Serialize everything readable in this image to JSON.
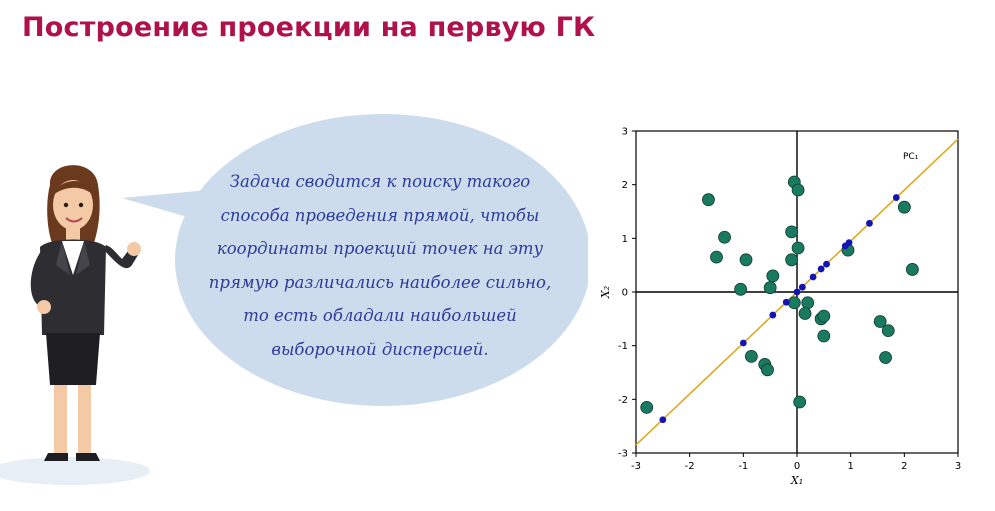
{
  "slide": {
    "title": "Построение проекции на первую ГК",
    "bubble_text": "Задача сводится к поиску такого способа проведения прямой, чтобы координаты проекций точек на эту прямую различались наиболее сильно, то есть обладали наибольшей выборочной дисперсией."
  },
  "colors": {
    "title": "#b0114b",
    "bubble_fill": "#cddcec",
    "bubble_text": "#2c3a9a",
    "scatter_points": "#1a7a60",
    "projection_points": "#1414b4",
    "pc_line": "#e0a81c"
  },
  "illustration": {
    "icon": "businesswoman-presenting"
  },
  "chart_data": {
    "type": "scatter",
    "xlabel": "X₁",
    "ylabel": "X₂",
    "xlim": [
      -3,
      3
    ],
    "ylim": [
      -3,
      3
    ],
    "xticks": [
      "-3",
      "-2",
      "-1",
      "0",
      "1",
      "2",
      "3"
    ],
    "yticks": [
      "3",
      "2",
      "1",
      "0",
      "-1",
      "-2",
      "-3"
    ],
    "line": {
      "label": "PC₁",
      "slope": 0.95,
      "intercept": 0.0
    },
    "grid": false,
    "crosshair_at_origin": true,
    "series": [
      {
        "role": "observations",
        "points": [
          [
            -2.8,
            -2.15
          ],
          [
            -1.65,
            1.72
          ],
          [
            -1.35,
            1.02
          ],
          [
            -1.5,
            0.65
          ],
          [
            -1.05,
            0.05
          ],
          [
            -0.95,
            0.6
          ],
          [
            -0.85,
            -1.2
          ],
          [
            -0.6,
            -1.35
          ],
          [
            -0.55,
            -1.45
          ],
          [
            -0.45,
            0.3
          ],
          [
            -0.5,
            0.08
          ],
          [
            -0.1,
            0.6
          ],
          [
            -0.1,
            1.12
          ],
          [
            -0.05,
            2.05
          ],
          [
            0.02,
            1.9
          ],
          [
            0.02,
            0.82
          ],
          [
            -0.05,
            -0.2
          ],
          [
            0.2,
            -0.2
          ],
          [
            0.15,
            -0.4
          ],
          [
            0.45,
            -0.5
          ],
          [
            0.5,
            -0.45
          ],
          [
            0.5,
            -0.82
          ],
          [
            0.05,
            -2.05
          ],
          [
            0.95,
            0.78
          ],
          [
            1.55,
            -0.55
          ],
          [
            1.7,
            -0.72
          ],
          [
            1.65,
            -1.22
          ],
          [
            2.0,
            1.58
          ],
          [
            2.15,
            0.42
          ]
        ]
      },
      {
        "role": "projections",
        "points": [
          [
            -2.5,
            -2.38
          ],
          [
            -1.0,
            -0.95
          ],
          [
            -0.45,
            -0.43
          ],
          [
            -0.2,
            -0.19
          ],
          [
            0.0,
            0.0
          ],
          [
            0.1,
            0.09
          ],
          [
            0.3,
            0.28
          ],
          [
            0.45,
            0.43
          ],
          [
            0.55,
            0.52
          ],
          [
            0.9,
            0.86
          ],
          [
            0.97,
            0.92
          ],
          [
            1.35,
            1.28
          ],
          [
            1.85,
            1.76
          ]
        ]
      }
    ]
  }
}
